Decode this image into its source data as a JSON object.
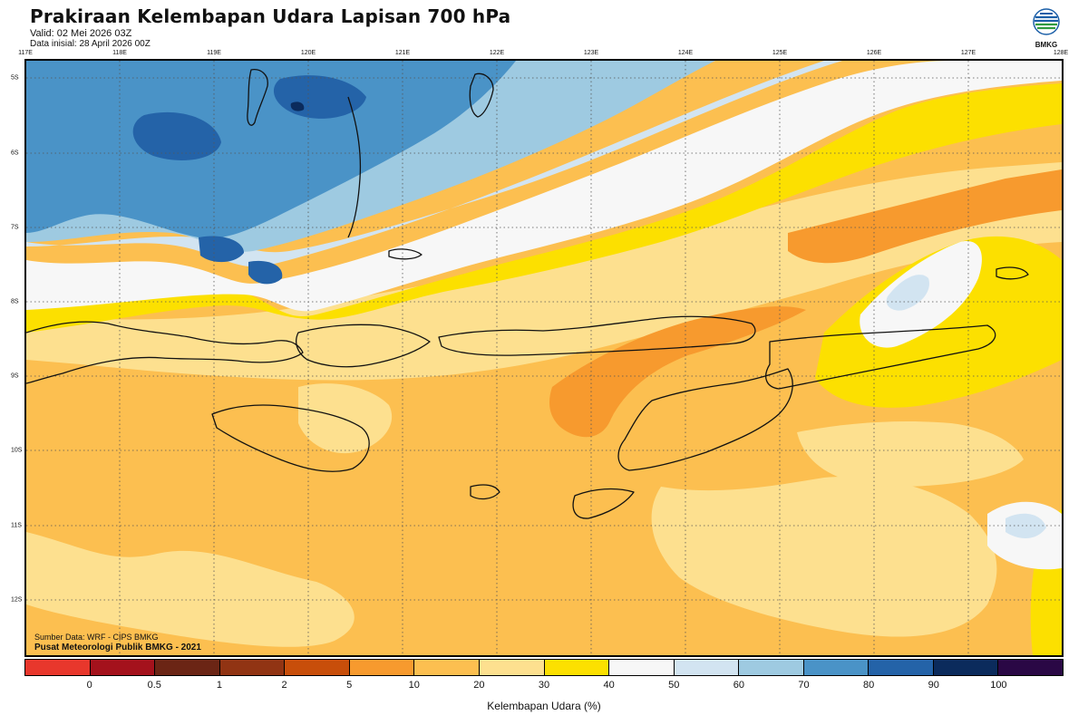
{
  "header": {
    "title": "Prakiraan Kelembapan Udara Lapisan 700 hPa",
    "valid": "Valid: 02 Mei 2026 03Z",
    "init": "Data inisial: 28 April 2026 00Z"
  },
  "logo": {
    "text": "BMKG",
    "icon": "bmkg-logo-icon"
  },
  "axes": {
    "lon_labels": [
      "117E",
      "118E",
      "119E",
      "120E",
      "121E",
      "122E",
      "123E",
      "124E",
      "125E",
      "126E",
      "127E",
      "128E"
    ],
    "lat_labels": [
      "5S",
      "6S",
      "7S",
      "8S",
      "9S",
      "10S",
      "11S",
      "12S"
    ]
  },
  "credits": {
    "source": "Sumber Data: WRF - CIPS BMKG",
    "org": "Pusat Meteorologi Publik BMKG - 2021"
  },
  "legend": {
    "unit": "Kelembapan Udara (%)",
    "ticks": [
      "0",
      "0.5",
      "1",
      "2",
      "5",
      "10",
      "20",
      "30",
      "40",
      "50",
      "60",
      "70",
      "80",
      "90",
      "100"
    ],
    "colors": [
      "#e8372c",
      "#a4121c",
      "#6b2515",
      "#913413",
      "#c84e0a",
      "#f79a2e",
      "#fcbf50",
      "#fde08f",
      "#fce000",
      "#f7f7f7",
      "#d2e4f1",
      "#9ecae1",
      "#4a93c7",
      "#2463a8",
      "#0b2b5c",
      "#2a0845"
    ]
  },
  "colors": {
    "c90": "#0b2b5c",
    "c80": "#2463a8",
    "c70": "#4a93c7",
    "c60": "#9ecae1",
    "c50": "#d2e4f1",
    "c40": "#f7f7f7",
    "c30": "#fce000",
    "c20": "#fde08f",
    "c10": "#fcbf50",
    "c5": "#f79a2e"
  }
}
